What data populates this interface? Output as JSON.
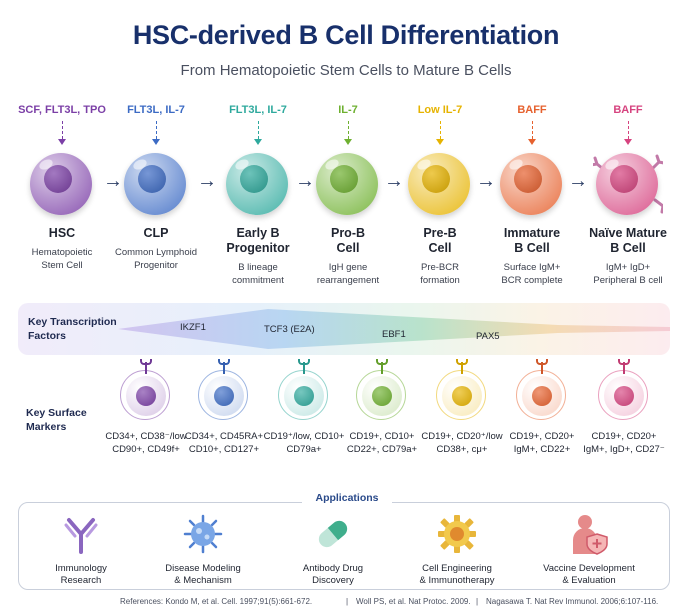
{
  "title": "HSC-derived B Cell Differentiation",
  "subtitle": "From Hematopoietic Stem Cells to Mature B Cells",
  "stages": [
    {
      "factor": "SCF, FLT3L, TPO",
      "name": "HSC",
      "desc": "Hematopoietic\nStem Cell",
      "color": "#7b3fa6"
    },
    {
      "factor": "FLT3L, IL-7",
      "name": "CLP",
      "desc": "Common Lymphoid\nProgenitor",
      "color": "#3c6bc4"
    },
    {
      "factor": "FLT3L, IL-7",
      "name": "Early B\nProgenitor",
      "desc": "B lineage\ncommitment",
      "color": "#2ea99d"
    },
    {
      "factor": "IL-7",
      "name": "Pro-B\nCell",
      "desc": "IgH gene\nrearrangement",
      "color": "#6eb030"
    },
    {
      "factor": "Low IL-7",
      "name": "Pre-B\nCell",
      "desc": "Pre-BCR\nformation",
      "color": "#e6b300"
    },
    {
      "factor": "BAFF",
      "name": "Immature\nB Cell",
      "desc": "Surface IgM+\nBCR complete",
      "color": "#e6612e"
    },
    {
      "factor": "BAFF",
      "name": "Naïve Mature\nB Cell",
      "desc": "IgM+ IgD+\nPeripheral B cell",
      "color": "#d6437f"
    }
  ],
  "transcription": {
    "label": "Key Transcription\nFactors",
    "factors": [
      "IKZF1",
      "TCF3 (E2A)",
      "EBF1",
      "PAX5"
    ]
  },
  "surface": {
    "label": "Key Surface\nMarkers",
    "markers": [
      "CD34+, CD38⁻/low\nCD90+, CD49f+",
      "CD34+, CD45RA+\nCD10+, CD127+",
      "CD19⁺/low, CD10+\nCD79a+",
      "CD19+, CD10+\nCD22+, CD79a+",
      "CD19+, CD20⁺/low\nCD38+, cμ+",
      "CD19+, CD20+\nIgM+, CD22+",
      "CD19+, CD20+\nIgM+, IgD+, CD27⁻"
    ]
  },
  "applications": {
    "title": "Applications",
    "items": [
      {
        "label": "Immunology\nResearch",
        "icon": "antibody-icon"
      },
      {
        "label": "Disease Modeling\n& Mechanism",
        "icon": "virus-icon"
      },
      {
        "label": "Antibody Drug\nDiscovery",
        "icon": "capsule-icon"
      },
      {
        "label": "Cell Engineering\n& Immunotherapy",
        "icon": "gear-cell-icon"
      },
      {
        "label": "Vaccine Development\n& Evaluation",
        "icon": "person-shield-icon"
      }
    ]
  },
  "references": [
    "References: Kondo M, et al. Cell. 1997;91(5):661-672.",
    "Woll PS, et al. Nat Protoc. 2009.",
    "Nagasawa T. Nat Rev Immunol. 2006;6:107-116."
  ]
}
